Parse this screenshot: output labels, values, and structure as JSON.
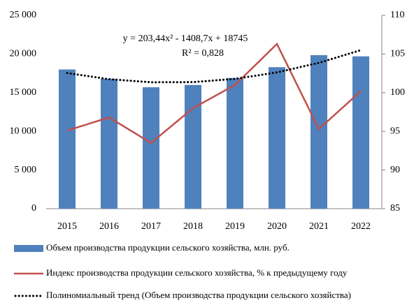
{
  "chart_data": {
    "type": "bar",
    "categories": [
      "2015",
      "2016",
      "2017",
      "2018",
      "2019",
      "2020",
      "2021",
      "2022"
    ],
    "series": [
      {
        "name": "Объем производства продукции сельского хозяйства, млн. руб.",
        "type": "bar",
        "color": "#4f81bd",
        "values": [
          18000,
          16800,
          15700,
          16000,
          16900,
          18300,
          19850,
          19700
        ]
      },
      {
        "name": "Индекс производства продукции сельского хозяйства, % к предыдущему году",
        "type": "line",
        "axis": "y2",
        "color": "#c0504d",
        "values": [
          95.1,
          96.8,
          93.5,
          98.0,
          101.0,
          106.3,
          95.3,
          100.2
        ]
      },
      {
        "name": "Полиномиальный тренд (Объем производства продукции сельского хозяйства)",
        "type": "trend",
        "color": "#000000",
        "values": [
          17540,
          16741,
          16350,
          16366,
          16789,
          17621,
          18860,
          20506
        ]
      }
    ],
    "annotations": [
      "y = 203,44x² - 1408,7x + 18745",
      "R² = 0,828"
    ],
    "ylim": [
      0,
      25000
    ],
    "yticks": [
      0,
      {
        "value": 5000,
        "label": "5 000"
      },
      {
        "value": 10000,
        "label": "10 000"
      },
      {
        "value": 15000,
        "label": "15 000"
      },
      {
        "value": 20000,
        "label": "20 000"
      },
      {
        "value": 25000,
        "label": "25 000"
      }
    ],
    "y2lim": [
      85,
      110
    ],
    "y2ticks": [
      85,
      90,
      95,
      100,
      105,
      110
    ],
    "legend": "bottom"
  }
}
